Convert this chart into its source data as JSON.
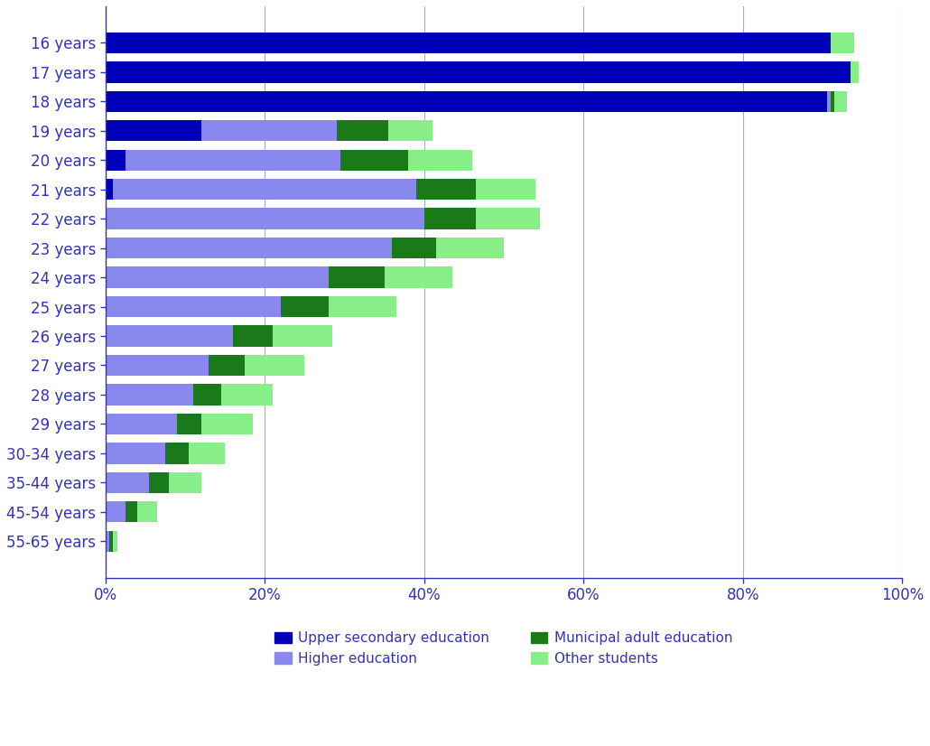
{
  "categories": [
    "16 years",
    "17 years",
    "18 years",
    "19 years",
    "20 years",
    "21 years",
    "22 years",
    "23 years",
    "24 years",
    "25 years",
    "26 years",
    "27 years",
    "28 years",
    "29 years",
    "30-34 years",
    "35-44 years",
    "45-54 years",
    "55-65 years"
  ],
  "upper_secondary": [
    91.0,
    93.5,
    90.5,
    12.0,
    2.5,
    1.0,
    0.0,
    0.0,
    0.0,
    0.0,
    0.0,
    0.0,
    0.0,
    0.0,
    0.0,
    0.0,
    0.0,
    0.0
  ],
  "higher_education": [
    0.0,
    0.0,
    0.5,
    17.0,
    27.0,
    38.0,
    40.0,
    36.0,
    28.0,
    22.0,
    16.0,
    13.0,
    11.0,
    9.0,
    7.5,
    5.5,
    2.5,
    0.5
  ],
  "municipal_adult": [
    0.0,
    0.0,
    0.5,
    6.5,
    8.5,
    7.5,
    6.5,
    5.5,
    7.0,
    6.0,
    5.0,
    4.5,
    3.5,
    3.0,
    3.0,
    2.5,
    1.5,
    0.5
  ],
  "other_students": [
    3.0,
    1.0,
    1.5,
    5.5,
    8.0,
    7.5,
    8.0,
    8.5,
    8.5,
    8.5,
    7.5,
    7.5,
    6.5,
    6.5,
    4.5,
    4.0,
    2.5,
    0.5
  ],
  "colors": {
    "upper_secondary": "#0000B8",
    "higher_education": "#8888EE",
    "municipal_adult": "#1A7A1A",
    "other_students": "#88EE88"
  },
  "legend_labels": {
    "upper_secondary": "Upper secondary education",
    "higher_education": "Higher education",
    "municipal_adult": "Municipal adult education",
    "other_students": "Other students"
  },
  "xticks": [
    0,
    20,
    40,
    60,
    80,
    100
  ],
  "xtick_labels": [
    "0%",
    "20%",
    "40%",
    "60%",
    "80%",
    "100%"
  ],
  "background_color": "#FFFFFF",
  "grid_color": "#AAAACC",
  "bar_height": 0.72,
  "label_color": "#3333BB",
  "axis_color": "#3333BB"
}
